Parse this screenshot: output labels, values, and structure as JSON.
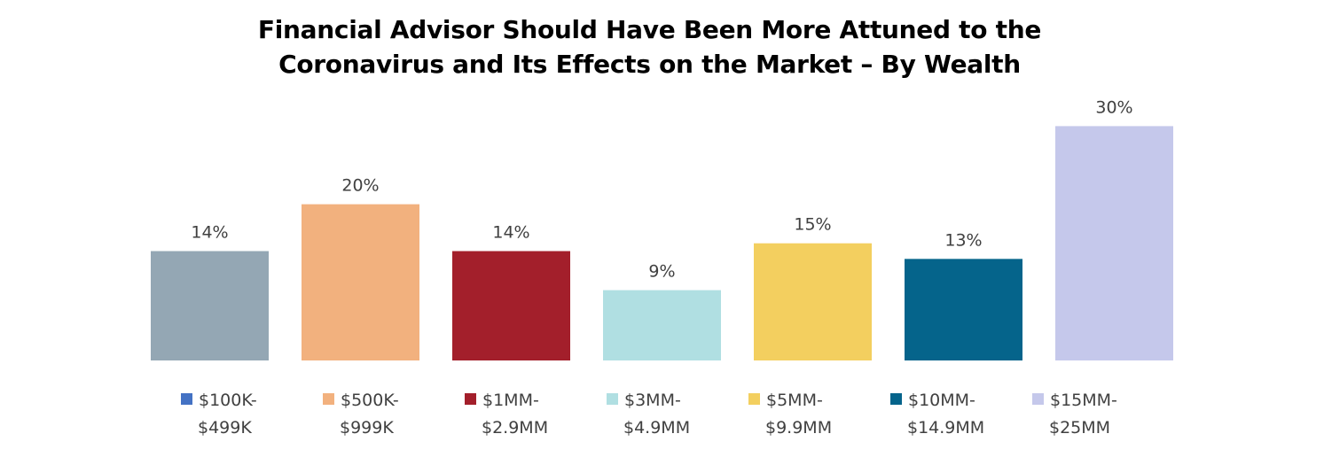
{
  "chart_data": {
    "type": "bar",
    "title": "Financial Advisor Should Have Been More Attuned to the Coronavirus and Its Effects on the Market – By Wealth",
    "title_lines": [
      "Financial Advisor Should Have Been More Attuned to the",
      "Coronavirus and Its Effects on the Market – By Wealth"
    ],
    "xlabel": "",
    "ylabel": "",
    "ylim": [
      0,
      30.5
    ],
    "grid": false,
    "legend_position": "bottom",
    "series": [
      {
        "name": "$100K-$499K",
        "legend_lines": [
          "$100K-",
          "$499K"
        ],
        "value": 14,
        "label": "14%",
        "color": "#94A7B4",
        "legend_color": "#4472C4"
      },
      {
        "name": "$500K-$999K",
        "legend_lines": [
          "$500K-",
          "$999K"
        ],
        "value": 20,
        "label": "20%",
        "color": "#F2B17E",
        "legend_color": "#F2B17E"
      },
      {
        "name": "$1MM-$2.9MM",
        "legend_lines": [
          "$1MM-",
          "$2.9MM"
        ],
        "value": 14,
        "label": "14%",
        "color": "#A31F2B",
        "legend_color": "#A31F2B"
      },
      {
        "name": "$3MM-$4.9MM",
        "legend_lines": [
          "$3MM-",
          "$4.9MM"
        ],
        "value": 9,
        "label": "9%",
        "color": "#B0DFE2",
        "legend_color": "#B0DFE2"
      },
      {
        "name": "$5MM-$9.9MM",
        "legend_lines": [
          "$5MM-",
          "$9.9MM"
        ],
        "value": 15,
        "label": "15%",
        "color": "#F3CF5F",
        "legend_color": "#F3CF5F"
      },
      {
        "name": "$10MM-$14.9MM",
        "legend_lines": [
          "$10MM-",
          "$14.9MM"
        ],
        "value": 13,
        "label": "13%",
        "color": "#05648B",
        "legend_color": "#05648B"
      },
      {
        "name": "$15MM-$25MM",
        "legend_lines": [
          "$15MM-",
          "$25MM"
        ],
        "value": 30,
        "label": "30%",
        "color": "#C5C8EB",
        "legend_color": "#C5C8EB"
      }
    ]
  }
}
